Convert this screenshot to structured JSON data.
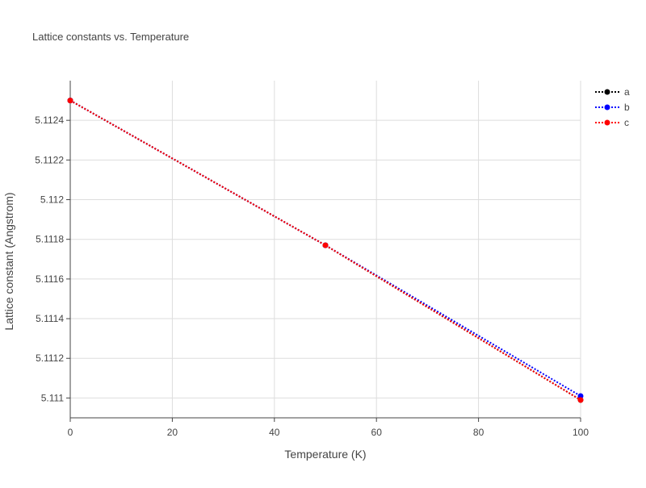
{
  "chart_data": {
    "type": "line",
    "title": "Lattice constants vs. Temperature",
    "x_label": "Temperature (K)",
    "y_label": "Lattice constant (Angstrom)",
    "x": [
      0,
      50,
      100
    ],
    "series": [
      {
        "name": "a",
        "color": "#000000",
        "values": [
          5.1125,
          5.11177,
          5.11099
        ]
      },
      {
        "name": "b",
        "color": "#0000ff",
        "values": [
          5.1125,
          5.11177,
          5.11101
        ]
      },
      {
        "name": "c",
        "color": "#ff0000",
        "values": [
          5.1125,
          5.11177,
          5.11099
        ]
      }
    ],
    "xlim": [
      0,
      100
    ],
    "xticks": [
      0,
      20,
      40,
      60,
      80,
      100
    ],
    "ylim": [
      5.1109,
      5.1126
    ],
    "yticks": [
      5.111,
      5.1112,
      5.1114,
      5.1116,
      5.1118,
      5.112,
      5.1122,
      5.1124
    ],
    "grid": true,
    "legend": "top-right"
  }
}
